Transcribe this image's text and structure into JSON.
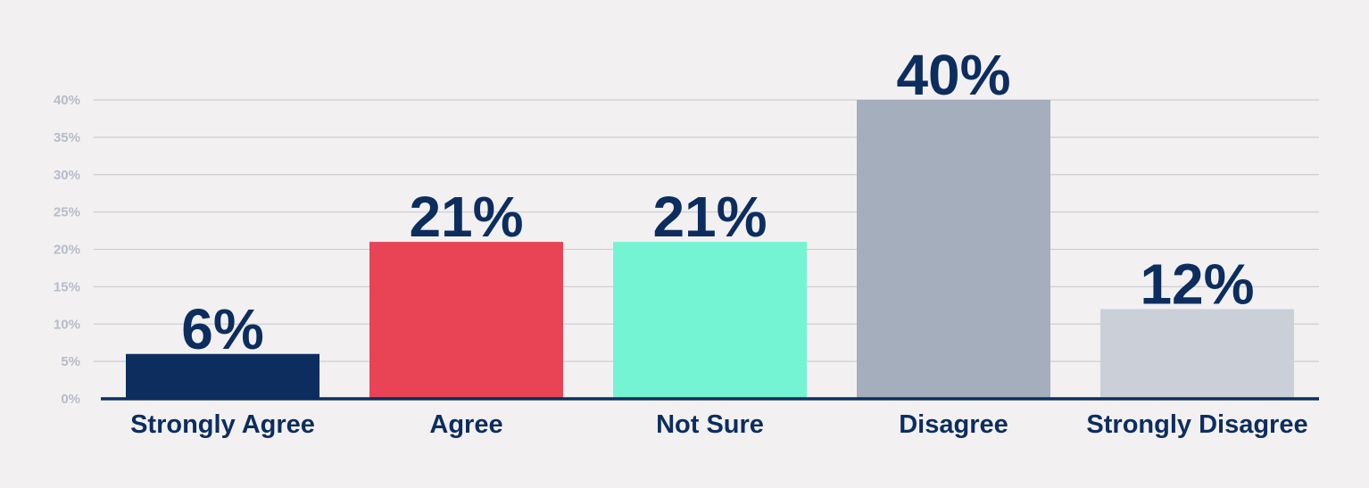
{
  "chart_data": {
    "type": "bar",
    "title": "",
    "xlabel": "",
    "ylabel": "",
    "categories": [
      "Strongly Agree",
      "Agree",
      "Not Sure",
      "Disagree",
      "Strongly Disagree"
    ],
    "values": [
      6,
      21,
      21,
      40,
      12
    ],
    "value_labels": [
      "6%",
      "21%",
      "21%",
      "40%",
      "12%"
    ],
    "colors": [
      "#0c2d5e",
      "#e84455",
      "#74f4d3",
      "#a4aebd",
      "#cbd0d8"
    ],
    "ylim": [
      0,
      40
    ],
    "yticks": [
      0,
      5,
      10,
      15,
      20,
      25,
      30,
      35,
      40
    ],
    "ytick_labels": [
      "0%",
      "5%",
      "10%",
      "15%",
      "20%",
      "25%",
      "30%",
      "35%",
      "40%"
    ],
    "grid": true,
    "legend": "none"
  },
  "colors": {
    "background": "#f2f0f1",
    "axis_line": "#0c2d5e",
    "grid": "#cdcdd2",
    "label_text": "#0c2d5e",
    "tick_text": "#b6bcc8"
  }
}
